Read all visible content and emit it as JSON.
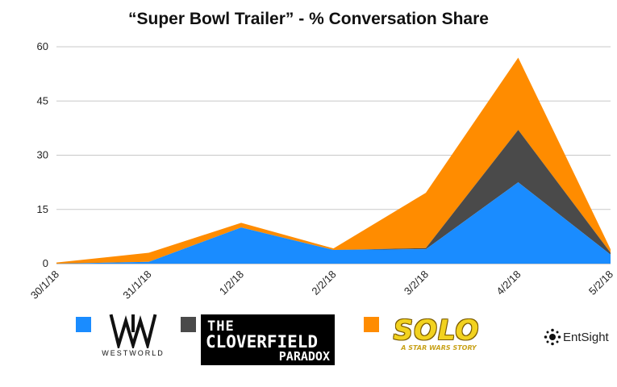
{
  "chart_data": {
    "type": "area",
    "stacked": true,
    "title": "“Super Bowl Trailer” - % Conversation Share",
    "categories": [
      "30/1/18",
      "31/1/18",
      "1/2/18",
      "2/2/18",
      "3/2/18",
      "4/2/18",
      "5/2/18"
    ],
    "ylim": [
      0,
      60
    ],
    "yticks": [
      "0",
      "15",
      "30",
      "45",
      "60"
    ],
    "grid": true,
    "series": [
      {
        "name": "Westworld",
        "color": "#1a8cff",
        "values": [
          0,
          0.5,
          10,
          3.8,
          4,
          22.5,
          2.5
        ]
      },
      {
        "name": "The Cloverfield Paradox",
        "color": "#4a4a4a",
        "values": [
          0,
          0,
          0,
          0,
          0.3,
          14.5,
          0.5
        ]
      },
      {
        "name": "Solo: A Star Wars Story",
        "color": "#ff8c00",
        "values": [
          0.3,
          2.5,
          1.3,
          0.4,
          15.3,
          20,
          1
        ]
      }
    ],
    "legend_position": "bottom"
  },
  "legend": {
    "westworld": {
      "swatch_color": "#1a8cff",
      "logo_text": "WESTWORLD"
    },
    "cloverfield": {
      "swatch_color": "#4a4a4a",
      "logo_line1": "THE",
      "logo_line2": "CLOVERFIELD",
      "logo_line3": "PARADOX"
    },
    "solo": {
      "swatch_color": "#ff8c00",
      "logo_word": "SOLO",
      "logo_sub": "A STAR WARS STORY"
    }
  },
  "brand": {
    "name": "EntSight"
  }
}
